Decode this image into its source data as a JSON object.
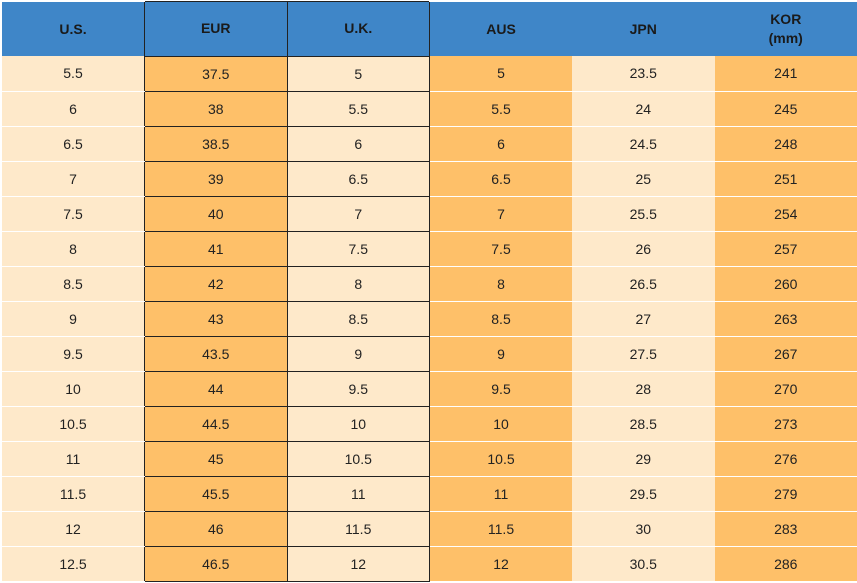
{
  "table": {
    "headers": [
      "U.S.",
      "EUR",
      "U.K.",
      "AUS",
      "JPN",
      "KOR\n(mm)"
    ],
    "rows": [
      [
        5.5,
        37.5,
        5,
        5,
        23.5,
        241
      ],
      [
        6,
        38,
        5.5,
        5.5,
        24,
        245
      ],
      [
        6.5,
        38.5,
        6,
        6,
        24.5,
        248
      ],
      [
        7,
        39,
        6.5,
        6.5,
        25,
        251
      ],
      [
        7.5,
        40,
        7,
        7,
        25.5,
        254
      ],
      [
        8,
        41,
        7.5,
        7.5,
        26,
        257
      ],
      [
        8.5,
        42,
        8,
        8,
        26.5,
        260
      ],
      [
        9,
        43,
        8.5,
        8.5,
        27,
        263
      ],
      [
        9.5,
        43.5,
        9,
        9,
        27.5,
        267
      ],
      [
        10,
        44,
        9.5,
        9.5,
        28,
        270
      ],
      [
        10.5,
        44.5,
        10,
        10,
        28.5,
        273
      ],
      [
        11,
        45,
        10.5,
        10.5,
        29,
        276
      ],
      [
        11.5,
        45.5,
        11,
        11,
        29.5,
        279
      ],
      [
        12,
        46,
        11.5,
        11.5,
        30,
        283
      ],
      [
        12.5,
        46.5,
        12,
        12,
        30.5,
        286
      ]
    ]
  }
}
